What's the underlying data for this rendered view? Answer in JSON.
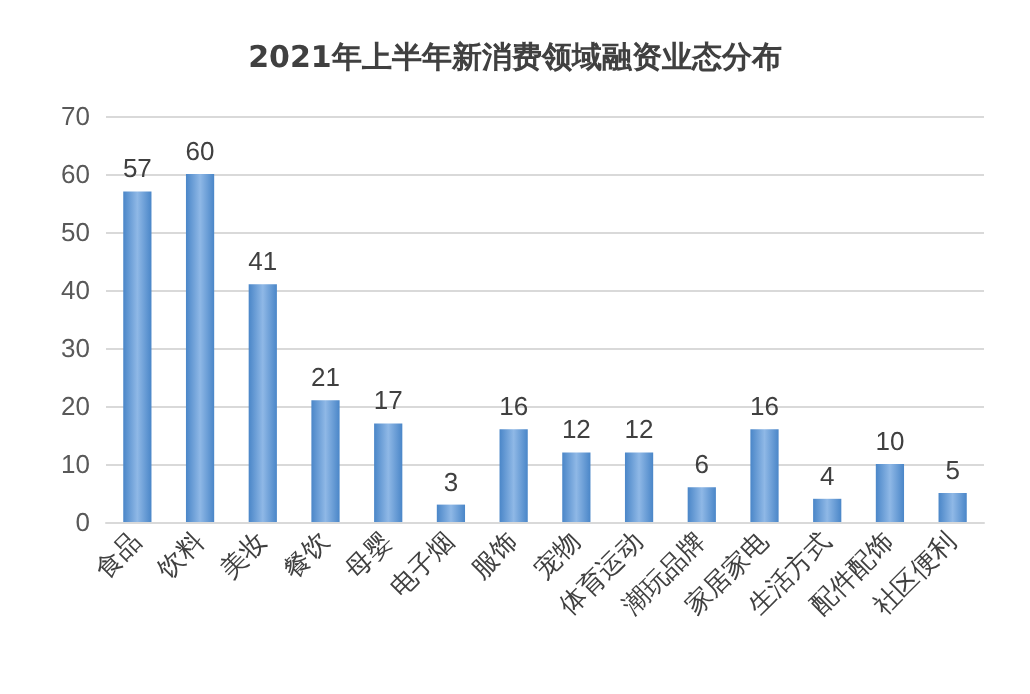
{
  "chart_data": {
    "type": "bar",
    "title": "2021年上半年新消费领域融资业态分布",
    "categories": [
      "食品",
      "饮料",
      "美妆",
      "餐饮",
      "母婴",
      "电子烟",
      "服饰",
      "宠物",
      "体育运动",
      "潮玩品牌",
      "家居家电",
      "生活方式",
      "配件配饰",
      "社区便利"
    ],
    "values": [
      57,
      60,
      41,
      21,
      17,
      3,
      16,
      12,
      12,
      6,
      16,
      4,
      10,
      5
    ],
    "color": "#4a86c8",
    "ylim": [
      0,
      70
    ],
    "yticks": [
      0,
      10,
      20,
      30,
      40,
      50,
      60,
      70
    ],
    "grid": "y",
    "data_labels": true
  }
}
